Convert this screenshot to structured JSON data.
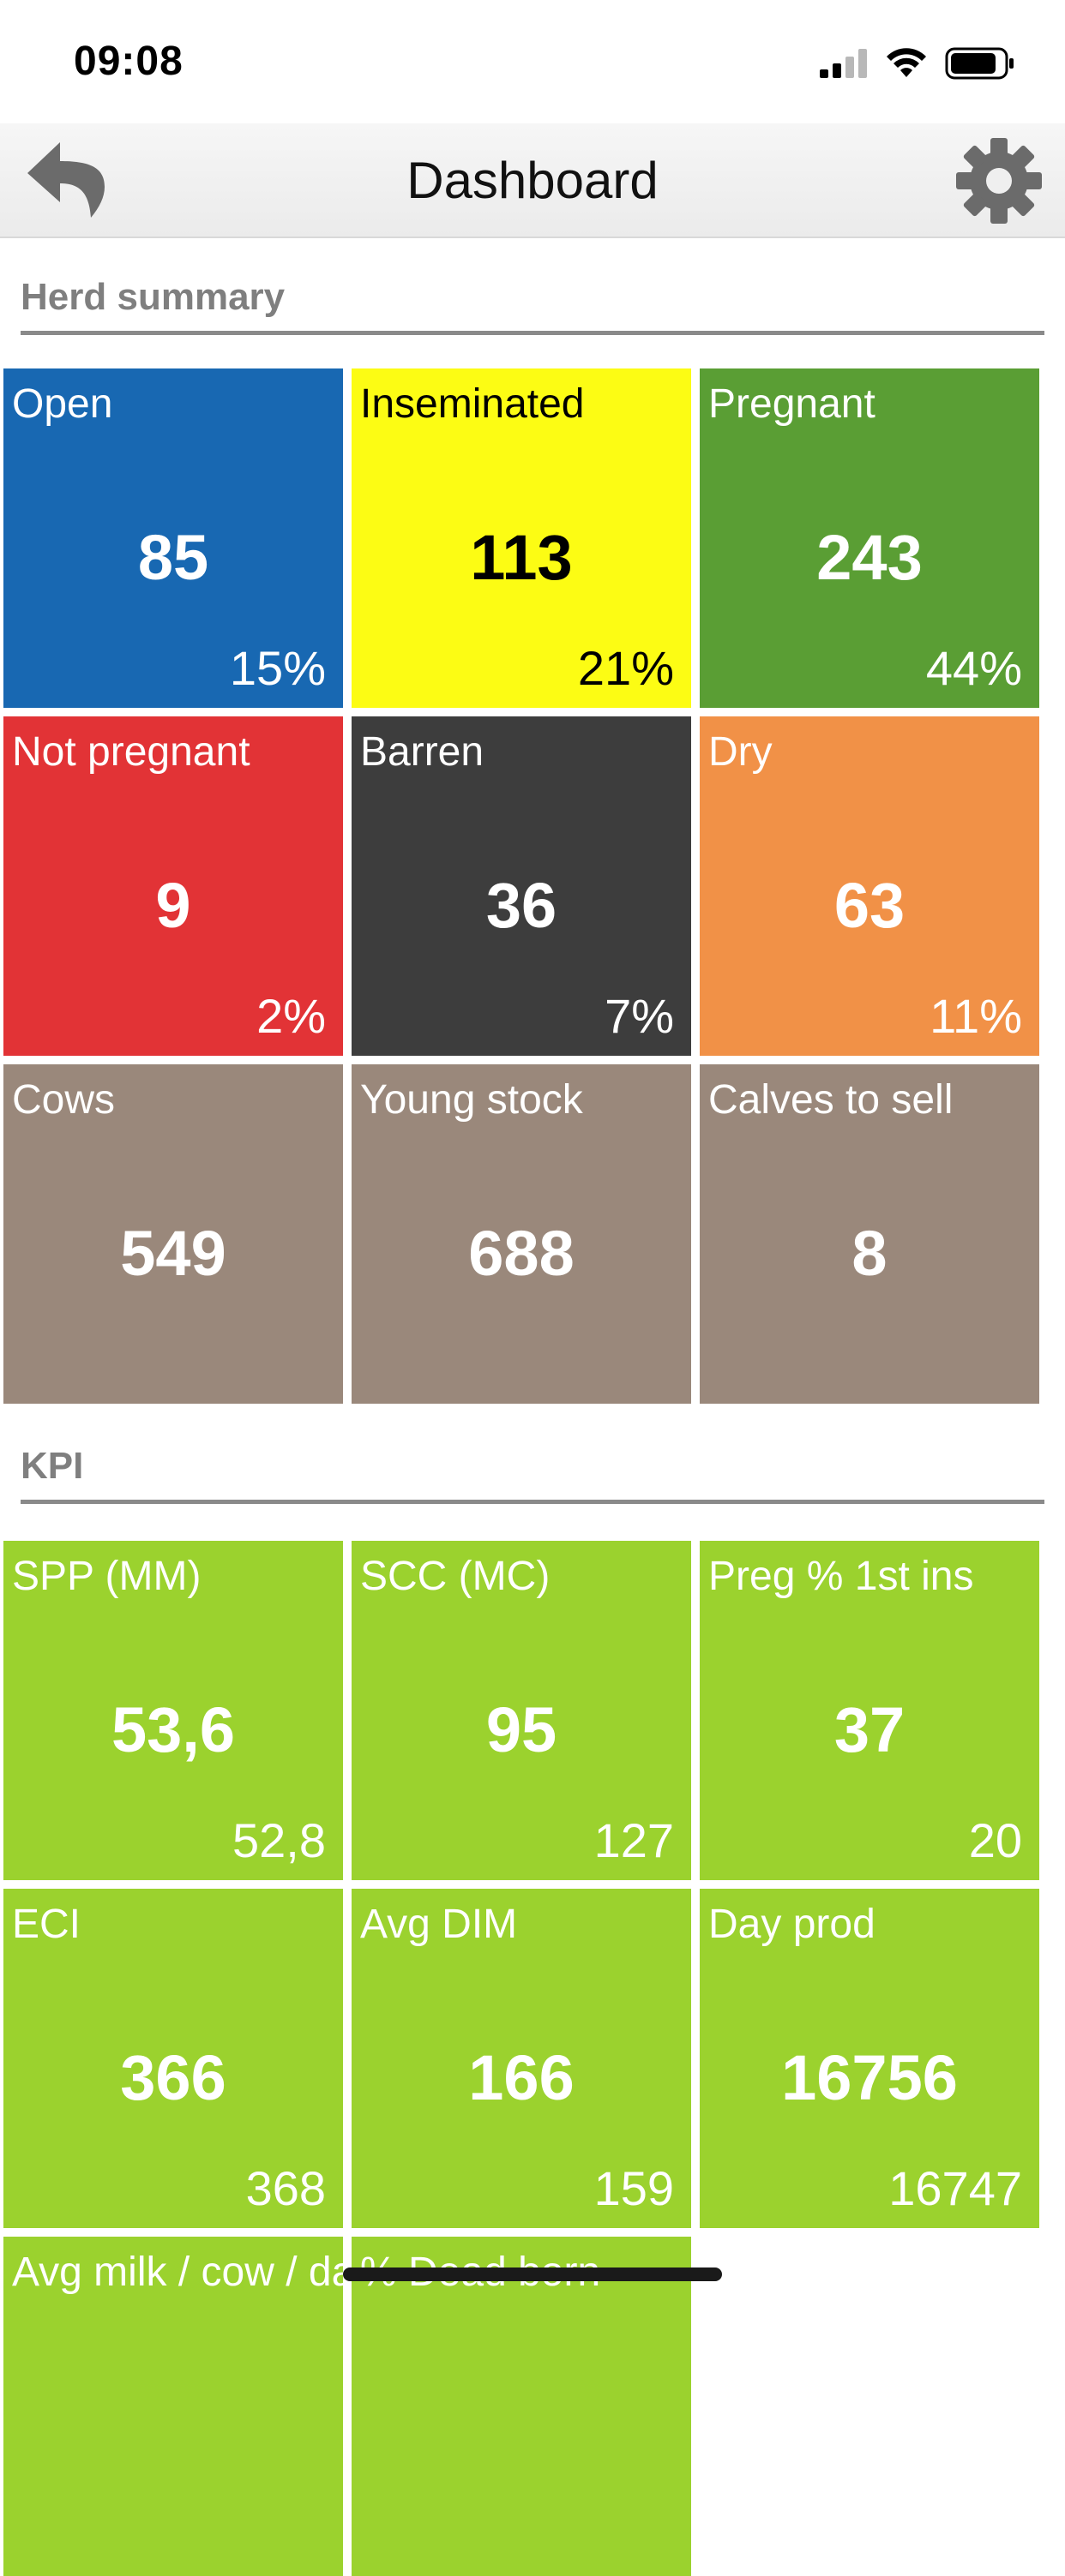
{
  "status": {
    "time": "09:08"
  },
  "nav": {
    "title": "Dashboard",
    "back_icon": "undo-arrow-icon",
    "settings_icon": "gear-icon"
  },
  "herd": {
    "header": "Herd summary",
    "tiles": [
      {
        "label": "Open",
        "value": "85",
        "sub": "15%",
        "color": "#1868b2",
        "text": "#ffffff"
      },
      {
        "label": "Inseminated",
        "value": "113",
        "sub": "21%",
        "color": "#fcfc14",
        "text": "#000000"
      },
      {
        "label": "Pregnant",
        "value": "243",
        "sub": "44%",
        "color": "#5a9e34",
        "text": "#ffffff"
      },
      {
        "label": "Not pregnant",
        "value": "9",
        "sub": "2%",
        "color": "#e23336",
        "text": "#ffffff"
      },
      {
        "label": "Barren",
        "value": "36",
        "sub": "7%",
        "color": "#3d3d3d",
        "text": "#ffffff"
      },
      {
        "label": "Dry",
        "value": "63",
        "sub": "11%",
        "color": "#f19147",
        "text": "#ffffff"
      },
      {
        "label": "Cows",
        "value": "549",
        "sub": "",
        "color": "#9a887b",
        "text": "#ffffff"
      },
      {
        "label": "Young stock",
        "value": "688",
        "sub": "",
        "color": "#9a887b",
        "text": "#ffffff"
      },
      {
        "label": "Calves to sell",
        "value": "8",
        "sub": "",
        "color": "#9a887b",
        "text": "#ffffff"
      }
    ]
  },
  "kpi": {
    "header": "KPI",
    "tiles": [
      {
        "label": "SPP (MM)",
        "value": "53,6",
        "sub": "52,8",
        "color": "#9bd22e",
        "text": "#ffffff"
      },
      {
        "label": "SCC (MC)",
        "value": "95",
        "sub": "127",
        "color": "#9bd22e",
        "text": "#ffffff"
      },
      {
        "label": "Preg % 1st ins",
        "value": "37",
        "sub": "20",
        "color": "#9bd22e",
        "text": "#ffffff"
      },
      {
        "label": "ECI",
        "value": "366",
        "sub": "368",
        "color": "#9bd22e",
        "text": "#ffffff"
      },
      {
        "label": "Avg DIM",
        "value": "166",
        "sub": "159",
        "color": "#9bd22e",
        "text": "#ffffff"
      },
      {
        "label": "Day prod",
        "value": "16756",
        "sub": "16747",
        "color": "#9bd22e",
        "text": "#ffffff"
      },
      {
        "label": "Avg milk / cow / day",
        "value": "",
        "sub": "",
        "color": "#9bd22e",
        "text": "#ffffff"
      },
      {
        "label": "% Dead born",
        "value": "",
        "sub": "",
        "color": "#9bd22e",
        "text": "#ffffff"
      }
    ]
  }
}
